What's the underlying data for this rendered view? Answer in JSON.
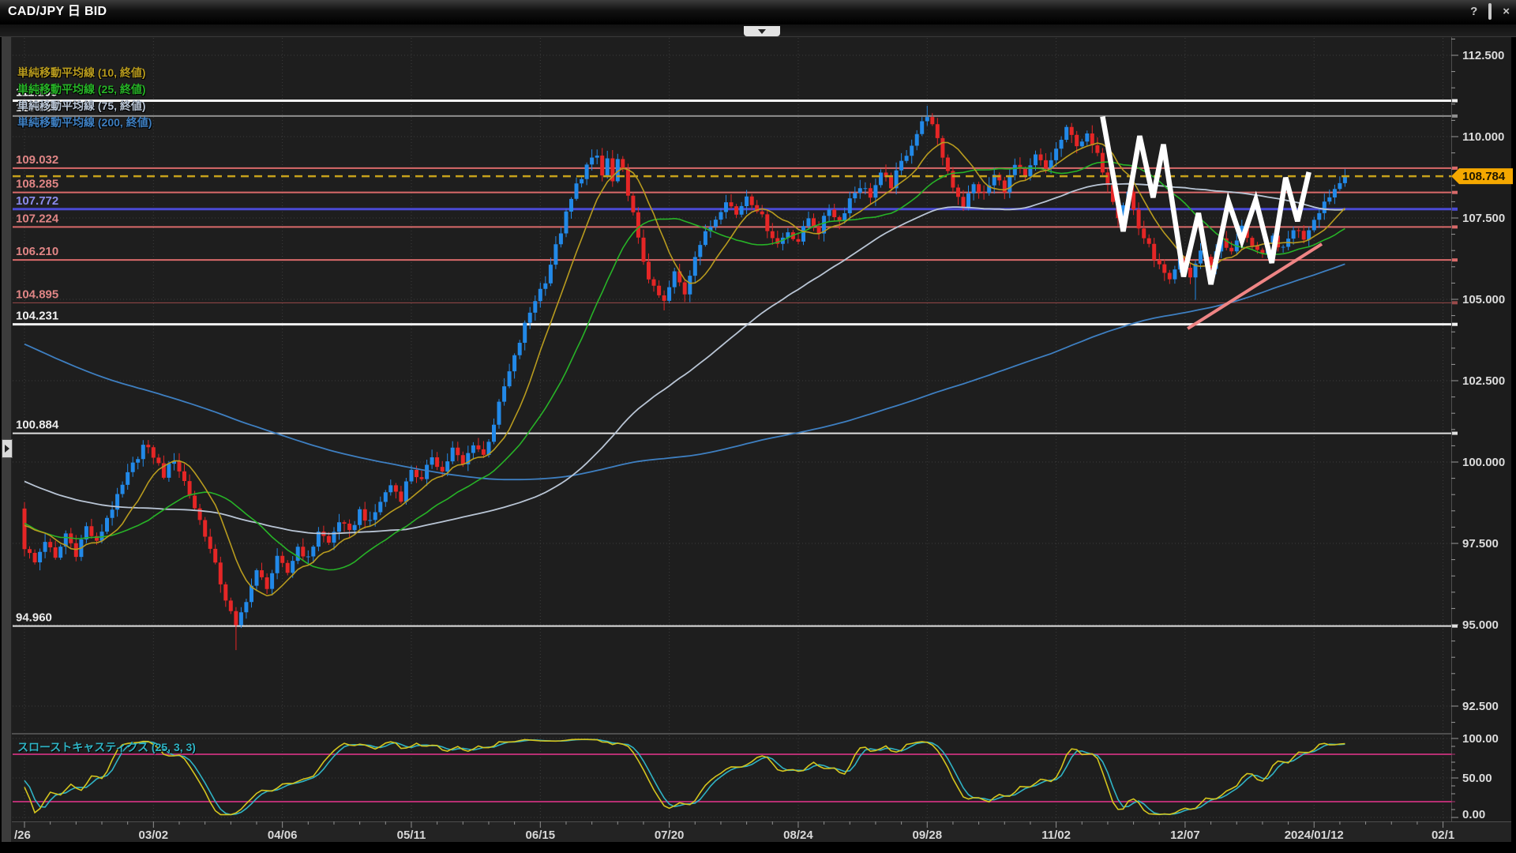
{
  "window": {
    "title": "CAD/JPY 日 BID",
    "help_label": "?",
    "close_label": "×"
  },
  "chart_data": {
    "type": "candlestick",
    "pair": "CAD/JPY",
    "timeframe": "日",
    "price_type": "BID",
    "current_price": "108.784",
    "y_axis": {
      "labels": [
        "112.500",
        "110.000",
        "107.500",
        "105.000",
        "102.500",
        "100.000",
        "97.500",
        "95.000",
        "92.500"
      ],
      "prices": [
        112.5,
        110.0,
        107.5,
        105.0,
        102.5,
        100.0,
        97.5,
        95.0,
        92.5
      ],
      "minor_step": 0.5
    },
    "x_axis": {
      "labels": [
        "/26",
        "03/02",
        "04/06",
        "05/11",
        "06/15",
        "07/20",
        "08/24",
        "09/28",
        "11/02",
        "12/07",
        "2024/01/12",
        "02/1"
      ],
      "label_days": [
        0,
        25,
        50,
        75,
        100,
        125,
        150,
        175,
        200,
        225,
        250,
        275
      ]
    },
    "moving_averages": [
      {
        "label": "単純移動平均線 (10, 終値)",
        "period": 10,
        "color": "#b89b1e"
      },
      {
        "label": "単純移動平均線 (25, 終値)",
        "period": 25,
        "color": "#27b327"
      },
      {
        "label": "単純移動平均線 (75, 終値)",
        "period": 75,
        "color": "#b9c5d5"
      },
      {
        "label": "単純移動平均線 (200, 終値)",
        "period": 200,
        "color": "#3e7fc1"
      }
    ],
    "price_levels": [
      {
        "price": 111.105,
        "label": "111.105",
        "color": "#f2f2f2",
        "label_color": "#f2f2f2",
        "width": 3
      },
      {
        "price": 110.633,
        "label": "110.633",
        "color": "#8f8f8f",
        "label_color": "#d5d5d5",
        "width": 2
      },
      {
        "price": 109.032,
        "label": "109.032",
        "color": "#d96a6a",
        "label_color": "#e08585",
        "width": 2
      },
      {
        "price": 108.285,
        "label": "108.285",
        "color": "#d96a6a",
        "label_color": "#e08585",
        "width": 2
      },
      {
        "price": 107.772,
        "label": "107.772",
        "color": "#4a4ad4",
        "label_color": "#8c8cec",
        "width": 3
      },
      {
        "price": 107.224,
        "label": "107.224",
        "color": "#d96a6a",
        "label_color": "#e08585",
        "width": 2
      },
      {
        "price": 106.21,
        "label": "106.210",
        "color": "#d96a6a",
        "label_color": "#e08585",
        "width": 2
      },
      {
        "price": 104.895,
        "label": "104.895",
        "color": "#9a4a4a",
        "label_color": "#e08585",
        "width": 1
      },
      {
        "price": 104.231,
        "label": "104.231",
        "color": "#f2f2f2",
        "label_color": "#f2f2f2",
        "width": 3
      },
      {
        "price": 100.884,
        "label": "100.884",
        "color": "#e0e0e0",
        "label_color": "#ededed",
        "width": 2
      },
      {
        "price": 94.96,
        "label": "94.960",
        "color": "#e0e0e0",
        "label_color": "#ededed",
        "width": 2
      }
    ],
    "current_price_line": {
      "price": 108.784,
      "color": "#c7a21b",
      "badge_bg": "#f5a800",
      "badge_text": "#201800"
    },
    "stochastic": {
      "label": "スローストキャスティクス (25, 3, 3)",
      "k_period": 25,
      "slowing": 3,
      "d_period": 3,
      "k_color": "#d4c51d",
      "d_color": "#2fb3c4",
      "band_color": "#b62f72",
      "upper": 80,
      "lower": 20,
      "axis_labels": [
        "100.00",
        "50.00",
        "0.00"
      ],
      "axis_values": [
        100,
        50,
        0
      ]
    },
    "candles": {
      "up_color": "#2289e8",
      "down_color": "#e52626",
      "price_path_anchors": [
        [
          0,
          97.4
        ],
        [
          2,
          96.9
        ],
        [
          4,
          97.6
        ],
        [
          6,
          97.0
        ],
        [
          8,
          97.8
        ],
        [
          10,
          97.2
        ],
        [
          12,
          98.0
        ],
        [
          14,
          97.5
        ],
        [
          16,
          98.3
        ],
        [
          18,
          98.9
        ],
        [
          20,
          99.6
        ],
        [
          23,
          100.5
        ],
        [
          25,
          100.2
        ],
        [
          27,
          99.6
        ],
        [
          29,
          100.1
        ],
        [
          31,
          99.4
        ],
        [
          33,
          98.6
        ],
        [
          35,
          97.8
        ],
        [
          37,
          96.8
        ],
        [
          39,
          95.8
        ],
        [
          41,
          94.9
        ],
        [
          43,
          95.8
        ],
        [
          45,
          96.6
        ],
        [
          47,
          96.2
        ],
        [
          49,
          97.0
        ],
        [
          51,
          96.6
        ],
        [
          53,
          97.4
        ],
        [
          55,
          97.0
        ],
        [
          57,
          97.9
        ],
        [
          59,
          97.5
        ],
        [
          61,
          98.2
        ],
        [
          63,
          97.8
        ],
        [
          65,
          98.5
        ],
        [
          67,
          98.1
        ],
        [
          69,
          98.8
        ],
        [
          71,
          99.3
        ],
        [
          73,
          98.9
        ],
        [
          75,
          99.8
        ],
        [
          77,
          99.4
        ],
        [
          79,
          100.2
        ],
        [
          81,
          99.7
        ],
        [
          83,
          100.4
        ],
        [
          85,
          99.9
        ],
        [
          87,
          100.6
        ],
        [
          89,
          100.2
        ],
        [
          91,
          101.2
        ],
        [
          93,
          102.3
        ],
        [
          95,
          103.2
        ],
        [
          97,
          104.2
        ],
        [
          99,
          105.0
        ],
        [
          101,
          105.6
        ],
        [
          103,
          106.6
        ],
        [
          105,
          107.6
        ],
        [
          107,
          108.5
        ],
        [
          109,
          109.1
        ],
        [
          111,
          109.4
        ],
        [
          112,
          108.8
        ],
        [
          113,
          109.3
        ],
        [
          114,
          108.6
        ],
        [
          115,
          109.2
        ],
        [
          116,
          108.9
        ],
        [
          117,
          108.3
        ],
        [
          118,
          107.6
        ],
        [
          119,
          106.8
        ],
        [
          120,
          106.2
        ],
        [
          121,
          105.7
        ],
        [
          122,
          105.3
        ],
        [
          124,
          104.9
        ],
        [
          126,
          105.8
        ],
        [
          128,
          105.2
        ],
        [
          130,
          106.4
        ],
        [
          132,
          107.0
        ],
        [
          134,
          107.5
        ],
        [
          136,
          108.1
        ],
        [
          138,
          107.6
        ],
        [
          140,
          108.2
        ],
        [
          142,
          107.8
        ],
        [
          144,
          107.2
        ],
        [
          146,
          106.7
        ],
        [
          148,
          107.1
        ],
        [
          150,
          106.8
        ],
        [
          152,
          107.5
        ],
        [
          154,
          107.1
        ],
        [
          156,
          107.8
        ],
        [
          158,
          107.4
        ],
        [
          160,
          108.1
        ],
        [
          162,
          108.5
        ],
        [
          164,
          108.2
        ],
        [
          166,
          108.8
        ],
        [
          168,
          108.5
        ],
        [
          170,
          109.2
        ],
        [
          172,
          109.8
        ],
        [
          174,
          110.4
        ],
        [
          175,
          110.7
        ],
        [
          176,
          110.3
        ],
        [
          178,
          109.4
        ],
        [
          180,
          108.5
        ],
        [
          182,
          107.9
        ],
        [
          184,
          108.5
        ],
        [
          186,
          108.2
        ],
        [
          188,
          108.8
        ],
        [
          190,
          108.4
        ],
        [
          192,
          109.1
        ],
        [
          194,
          108.7
        ],
        [
          196,
          109.4
        ],
        [
          198,
          109.0
        ],
        [
          200,
          109.6
        ],
        [
          202,
          110.2
        ],
        [
          204,
          109.8
        ],
        [
          206,
          110.0
        ],
        [
          208,
          109.4
        ],
        [
          210,
          108.6
        ],
        [
          212,
          107.6
        ],
        [
          214,
          108.3
        ],
        [
          216,
          107.2
        ],
        [
          218,
          106.6
        ],
        [
          220,
          106.0
        ],
        [
          222,
          105.5
        ],
        [
          224,
          106.2
        ],
        [
          226,
          105.7
        ],
        [
          228,
          106.5
        ],
        [
          230,
          106.0
        ],
        [
          232,
          106.9
        ],
        [
          234,
          106.4
        ],
        [
          236,
          107.2
        ],
        [
          238,
          106.7
        ],
        [
          240,
          106.3
        ],
        [
          242,
          106.9
        ],
        [
          244,
          106.5
        ],
        [
          246,
          107.2
        ],
        [
          248,
          106.9
        ],
        [
          250,
          107.5
        ],
        [
          252,
          108.0
        ],
        [
          254,
          108.4
        ],
        [
          256,
          108.784
        ]
      ]
    },
    "annotations": {
      "zigzag": {
        "color": "#ffffff",
        "points": [
          [
            209,
            110.62
          ],
          [
            213,
            107.09
          ],
          [
            216.2,
            110.02
          ],
          [
            218.8,
            108.13
          ],
          [
            220.8,
            109.76
          ],
          [
            224.7,
            105.7
          ],
          [
            227.6,
            107.65
          ],
          [
            230,
            105.46
          ],
          [
            233.4,
            108.01
          ],
          [
            236,
            106.8
          ],
          [
            238.7,
            108.06
          ],
          [
            241.8,
            106.12
          ],
          [
            244.5,
            108.74
          ],
          [
            246.8,
            107.4
          ],
          [
            249,
            108.91
          ]
        ]
      },
      "trendline": {
        "color": "#ef8585",
        "from": [
          225.5,
          104.1
        ],
        "to": [
          251.5,
          106.7
        ]
      }
    }
  }
}
